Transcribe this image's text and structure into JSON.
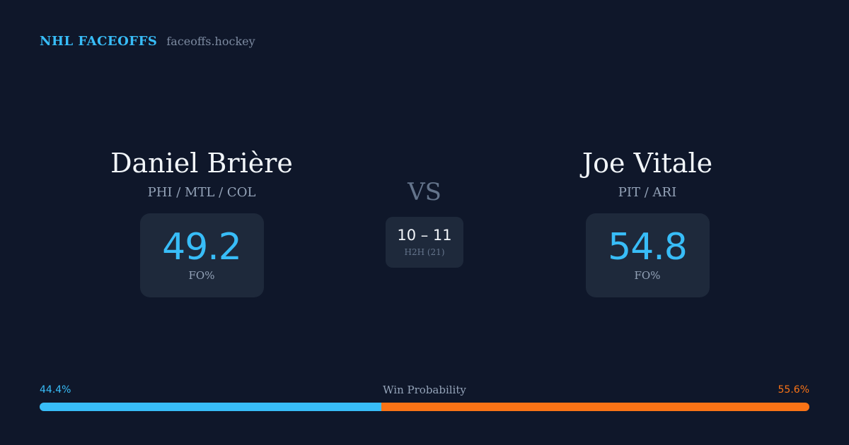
{
  "brand": {
    "name": "NHL FACEOFFS",
    "domain": "faceoffs.hockey"
  },
  "colors": {
    "background": "#0f172a",
    "card": "#1e293b",
    "accent_blue": "#38bdf8",
    "accent_orange": "#f97316"
  },
  "player_left": {
    "name": "Daniel Brière",
    "teams": "PHI / MTL / COL",
    "fo_pct": "49.2",
    "fo_label": "FO%"
  },
  "player_right": {
    "name": "Joe Vitale",
    "teams": "PIT / ARI",
    "fo_pct": "54.8",
    "fo_label": "FO%"
  },
  "matchup": {
    "vs_label": "VS",
    "h2h_score": "10 – 11",
    "h2h_label": "H2H (21)"
  },
  "win_probability": {
    "title": "Win Probability",
    "left_label": "44.4%",
    "right_label": "55.6%",
    "left_pct": 44.4,
    "right_pct": 55.6
  }
}
